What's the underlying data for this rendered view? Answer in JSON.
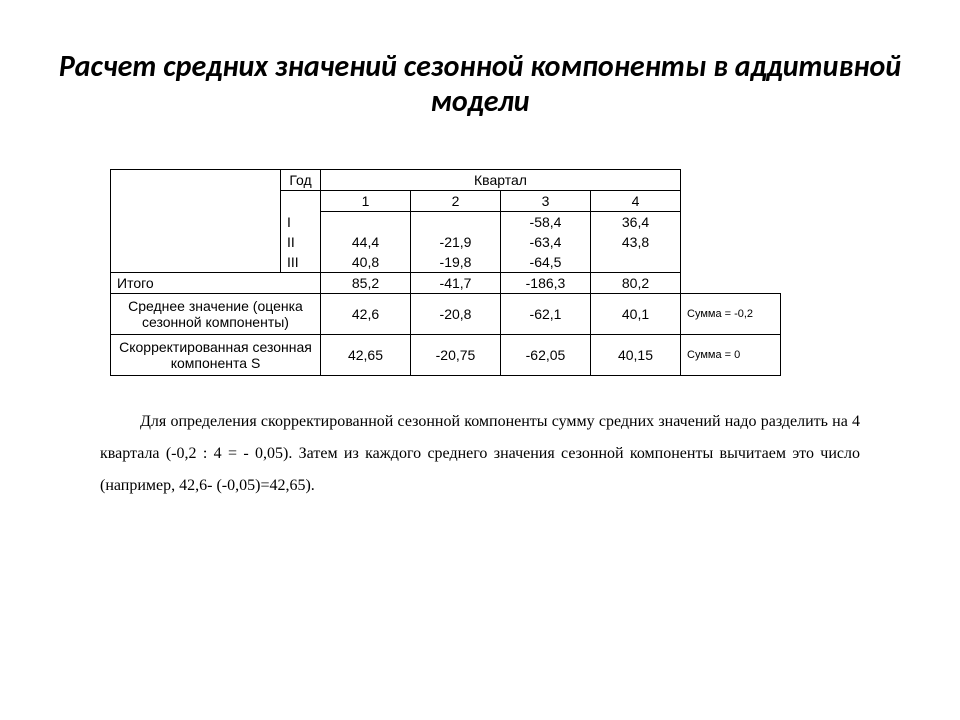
{
  "title": "Расчет средних значений сезонной компоненты в аддитивной модели",
  "table": {
    "header_year": "Год",
    "header_quarter": "Квартал",
    "quarters": [
      "1",
      "2",
      "3",
      "4"
    ],
    "years": [
      "I",
      "II",
      "III"
    ],
    "data": {
      "I": [
        "",
        "",
        "-58,4",
        "36,4"
      ],
      "II": [
        "44,4",
        "-21,9",
        "-63,4",
        "43,8"
      ],
      "III": [
        "40,8",
        "-19,8",
        "-64,5",
        ""
      ]
    },
    "total_label": "Итого",
    "totals": [
      "85,2",
      "-41,7",
      "-186,3",
      "80,2"
    ],
    "mean_label": "Среднее значение (оценка сезонной компоненты)",
    "means": [
      "42,6",
      "-20,8",
      "-62,1",
      "40,1"
    ],
    "mean_note": "Сумма = -0,2",
    "adj_label": "Скорректированная сезонная компонента S",
    "adj": [
      "42,65",
      "-20,75",
      "-62,05",
      "40,15"
    ],
    "adj_note": "Сумма = 0"
  },
  "paragraph": "Для определения скорректированной сезонной компоненты сумму средних значений надо разделить на 4 квартала (-0,2 : 4 = - 0,05). Затем из каждого среднего значения сезонной компоненты вычитаем это число (например, 42,6- (-0,05)=42,65)."
}
